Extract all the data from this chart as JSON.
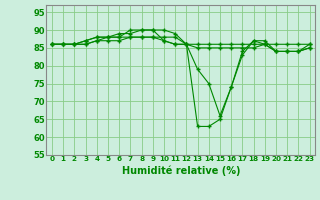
{
  "title": "",
  "xlabel": "Humidité relative (%)",
  "ylabel": "",
  "bg_color": "#cceedd",
  "grid_color": "#88cc88",
  "line_color": "#008800",
  "marker": "+",
  "xlim": [
    -0.5,
    23.5
  ],
  "ylim": [
    55,
    97
  ],
  "yticks": [
    55,
    60,
    65,
    70,
    75,
    80,
    85,
    90,
    95
  ],
  "xticks": [
    0,
    1,
    2,
    3,
    4,
    5,
    6,
    7,
    8,
    9,
    10,
    11,
    12,
    13,
    14,
    15,
    16,
    17,
    18,
    19,
    20,
    21,
    22,
    23
  ],
  "series": [
    [
      86,
      86,
      86,
      87,
      88,
      88,
      88,
      90,
      90,
      90,
      90,
      89,
      86,
      63,
      63,
      65,
      74,
      84,
      87,
      87,
      84,
      84,
      84,
      85
    ],
    [
      86,
      86,
      86,
      87,
      88,
      88,
      89,
      89,
      90,
      90,
      87,
      86,
      86,
      79,
      75,
      66,
      74,
      83,
      87,
      86,
      84,
      84,
      84,
      86
    ],
    [
      86,
      86,
      86,
      86,
      87,
      88,
      88,
      88,
      88,
      88,
      87,
      86,
      86,
      86,
      86,
      86,
      86,
      86,
      86,
      86,
      86,
      86,
      86,
      86
    ],
    [
      86,
      86,
      86,
      86,
      87,
      87,
      87,
      88,
      88,
      88,
      88,
      88,
      86,
      85,
      85,
      85,
      85,
      85,
      85,
      86,
      84,
      84,
      84,
      85
    ]
  ]
}
